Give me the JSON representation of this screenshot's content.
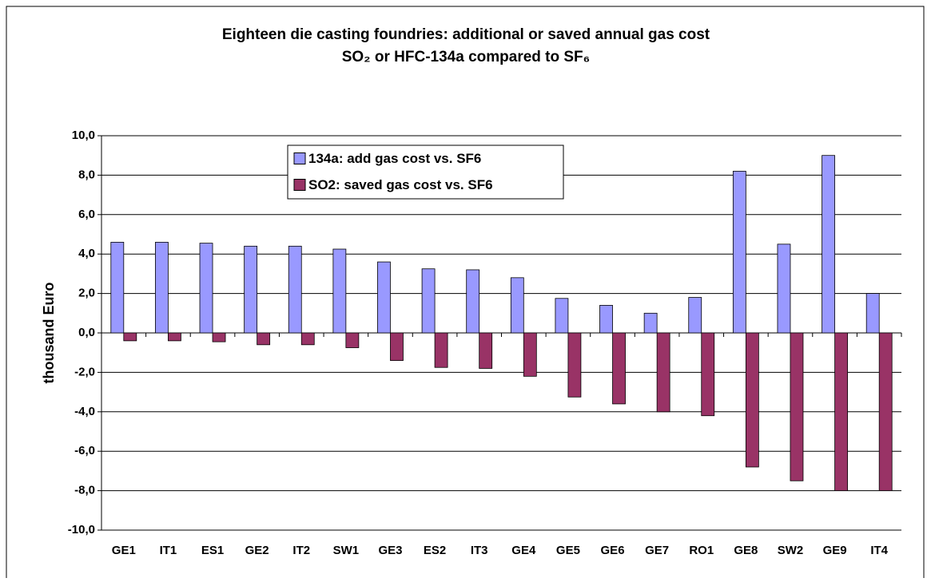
{
  "chart_data": {
    "type": "bar",
    "title": [
      "Eighteen die casting foundries: additional or saved annual gas cost",
      "SO₂ or HFC-134a compared to SF₆"
    ],
    "y_label": "thousand Euro",
    "categories": [
      "GE1",
      "IT1",
      "ES1",
      "GE2",
      "IT2",
      "SW1",
      "GE3",
      "ES2",
      "IT3",
      "GE4",
      "GE5",
      "GE6",
      "GE7",
      "RO1",
      "GE8",
      "SW2",
      "GE9",
      "IT4"
    ],
    "series": [
      {
        "name": "134a: add gas cost vs. SF6",
        "color": "#9999ff",
        "values": [
          4.6,
          4.6,
          4.55,
          4.4,
          4.4,
          4.25,
          3.6,
          3.25,
          3.2,
          2.8,
          1.75,
          1.4,
          1.0,
          1.8,
          8.2,
          4.5,
          9.0,
          2.0
        ]
      },
      {
        "name": "SO2: saved gas cost vs. SF6",
        "color": "#993366",
        "values": [
          -0.4,
          -0.4,
          -0.45,
          -0.6,
          -0.6,
          -0.75,
          -1.4,
          -1.75,
          -1.8,
          -2.2,
          -3.25,
          -3.6,
          -4.0,
          -4.2,
          -6.8,
          -7.5,
          -8.0,
          -8.0
        ]
      }
    ],
    "ylim": [
      -10,
      10
    ],
    "yticks": [
      {
        "value": -10,
        "label": "-10,0"
      },
      {
        "value": -8,
        "label": "-8,0"
      },
      {
        "value": -6,
        "label": "-6,0"
      },
      {
        "value": -4,
        "label": "-4,0"
      },
      {
        "value": -2,
        "label": "-2,0"
      },
      {
        "value": 0,
        "label": "0,0"
      },
      {
        "value": 2,
        "label": "2,0"
      },
      {
        "value": 4,
        "label": "4,0"
      },
      {
        "value": 6,
        "label": "6,0"
      },
      {
        "value": 8,
        "label": "8,0"
      },
      {
        "value": 10,
        "label": "10,0"
      }
    ],
    "grid": true,
    "legend": "top"
  }
}
